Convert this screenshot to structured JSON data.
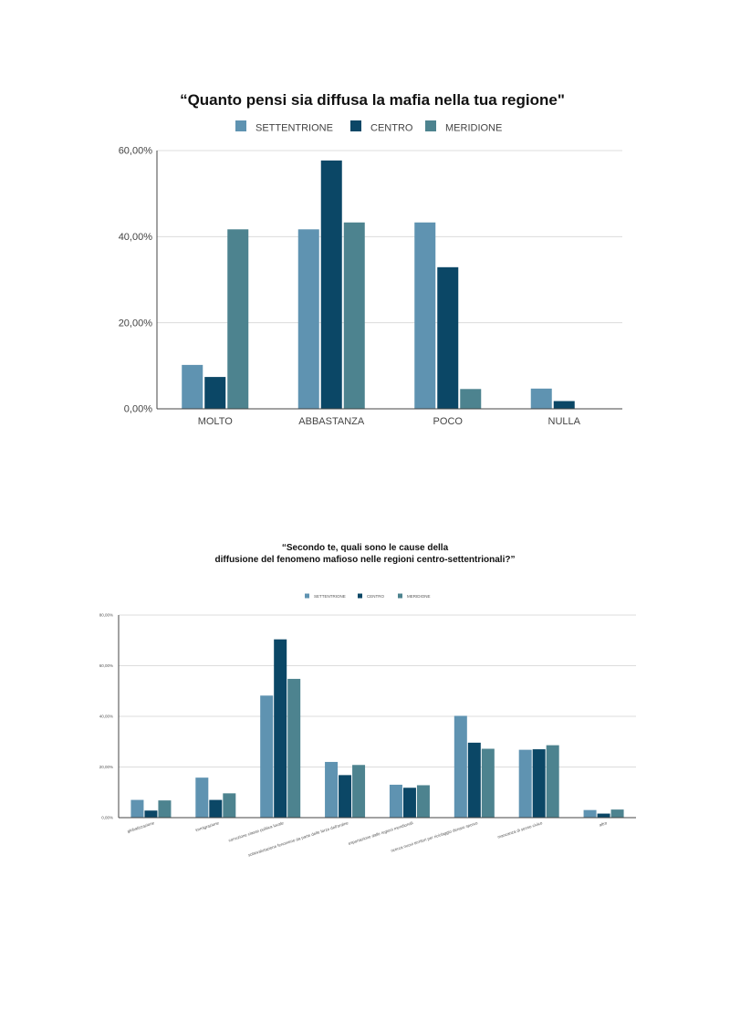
{
  "colors": {
    "SETTENTRIONE": "#5f93b1",
    "CENTRO": "#0b4766",
    "MERIDIONE": "#4d838f"
  },
  "chart_data": [
    {
      "type": "bar",
      "title": "“Quanto pensi sia diffusa la mafia nella tua regione\"",
      "categories": [
        "MOLTO",
        "ABBASTANZA",
        "POCO",
        "NULLA"
      ],
      "series": [
        {
          "name": "SETTENTRIONE",
          "values": [
            10.2,
            41.7,
            43.3,
            4.7
          ]
        },
        {
          "name": "CENTRO",
          "values": [
            7.4,
            57.7,
            32.9,
            1.8
          ]
        },
        {
          "name": "MERIDIONE",
          "values": [
            41.7,
            43.3,
            4.6,
            0
          ]
        }
      ],
      "ylim": [
        0,
        60
      ],
      "yticks": [
        "0,00%",
        "20,00%",
        "40,00%",
        "60,00%"
      ],
      "ytick_values": [
        0,
        20,
        40,
        60
      ],
      "grid": true,
      "legend": "top-center"
    },
    {
      "type": "bar",
      "title_lines": [
        "“Secondo te, quali sono le cause della",
        "diffusione del fenomeno mafioso nelle regioni centro-settentrionali?”"
      ],
      "categories": [
        "globalizzazione",
        "immigrazione",
        "corruzione classe politica locale",
        "sottovalutazione fenomeno da parte delle forze dell'ordine",
        "esportazione dalle regioni meridionali",
        "ricerca nuovi territori per riciclaggio denaro sporco",
        "mancanza di senso civico",
        "altro"
      ],
      "series": [
        {
          "name": "SETTENTRIONE",
          "values": [
            7.0,
            15.8,
            48.2,
            22.0,
            13.0,
            40.2,
            26.8,
            3.0
          ]
        },
        {
          "name": "CENTRO",
          "values": [
            2.8,
            7.0,
            70.4,
            16.8,
            11.8,
            29.6,
            27.0,
            1.6
          ]
        },
        {
          "name": "MERIDIONE",
          "values": [
            6.8,
            9.6,
            54.8,
            20.8,
            12.8,
            27.2,
            28.6,
            3.2
          ]
        }
      ],
      "ylim": [
        0,
        80
      ],
      "yticks": [
        "0,00%",
        "20,00%",
        "40,00%",
        "60,00%",
        "80,00%"
      ],
      "ytick_values": [
        0,
        20,
        40,
        60,
        80
      ],
      "grid": true,
      "legend": "top-center"
    }
  ]
}
